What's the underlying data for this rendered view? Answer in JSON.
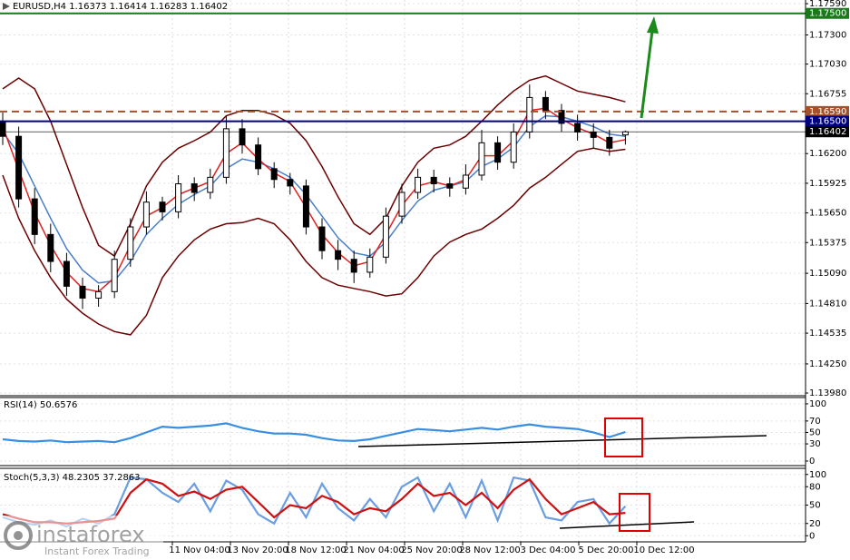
{
  "chart_data": [
    {
      "type": "candlestick",
      "title": "EURUSD,H4  1.16373 1.16414 1.16283 1.16402",
      "ylim": [
        1.13955,
        1.17624
      ],
      "yticks": [
        {
          "value": 1.1759,
          "label": "1.17590"
        },
        {
          "value": 1.173,
          "label": "1.17300"
        },
        {
          "value": 1.1703,
          "label": "1.17030"
        },
        {
          "value": 1.16755,
          "label": "1.16755"
        },
        {
          "value": 1.162,
          "label": "1.16200"
        },
        {
          "value": 1.15925,
          "label": "1.15925"
        },
        {
          "value": 1.1565,
          "label": "1.15650"
        },
        {
          "value": 1.15375,
          "label": "1.15375"
        },
        {
          "value": 1.1509,
          "label": "1.15090"
        },
        {
          "value": 1.1481,
          "label": "1.14810"
        },
        {
          "value": 1.14535,
          "label": "1.14535"
        },
        {
          "value": 1.1425,
          "label": "1.14250"
        },
        {
          "value": 1.1398,
          "label": "1.13980"
        }
      ],
      "levels": [
        {
          "value": 1.175,
          "label": "1.17500",
          "color": "#1a7a1a"
        },
        {
          "value": 1.1659,
          "label": "1.16590",
          "color": "#a0522d"
        },
        {
          "value": 1.165,
          "label": "1.16500",
          "color": "#000080"
        },
        {
          "value": 1.16402,
          "label": "1.16402",
          "color": "#000000"
        }
      ],
      "x_labels": [
        "11 Nov 04:00",
        "13 Nov 20:00",
        "18 Nov 12:00",
        "21 Nov 04:00",
        "25 Nov 20:00",
        "28 Nov 12:00",
        "3 Dec 04:00",
        "5 Dec 20:00",
        "10 Dec 12:00"
      ],
      "open": [
        1.165,
        1.1636,
        1.1578,
        1.1545,
        1.152,
        1.1497,
        1.1486,
        1.1492,
        1.1522,
        1.1552,
        1.1575,
        1.1566,
        1.1592,
        1.1584,
        1.1598,
        1.1643,
        1.1628,
        1.1606,
        1.1596,
        1.159,
        1.1552,
        1.153,
        1.1522,
        1.151,
        1.1524,
        1.1562,
        1.1584,
        1.1598,
        1.1592,
        1.1588,
        1.16,
        1.163,
        1.1612,
        1.164,
        1.1672,
        1.166,
        1.1648,
        1.164,
        1.1635,
        1.16373
      ],
      "high": [
        1.1658,
        1.1645,
        1.1588,
        1.1555,
        1.1528,
        1.1505,
        1.1498,
        1.153,
        1.156,
        1.1585,
        1.158,
        1.16,
        1.1598,
        1.1606,
        1.1655,
        1.1652,
        1.1635,
        1.1612,
        1.1602,
        1.1596,
        1.156,
        1.154,
        1.153,
        1.1532,
        1.157,
        1.1592,
        1.1606,
        1.1605,
        1.1598,
        1.161,
        1.1642,
        1.1636,
        1.1648,
        1.1684,
        1.1678,
        1.1666,
        1.1656,
        1.1648,
        1.1642,
        1.16414
      ],
      "low": [
        1.1628,
        1.157,
        1.1536,
        1.151,
        1.1488,
        1.1476,
        1.1478,
        1.1486,
        1.1515,
        1.1545,
        1.1558,
        1.156,
        1.1576,
        1.1578,
        1.1592,
        1.162,
        1.16,
        1.1588,
        1.1582,
        1.1545,
        1.1522,
        1.1512,
        1.15,
        1.1505,
        1.1518,
        1.1555,
        1.1578,
        1.1584,
        1.158,
        1.1582,
        1.1595,
        1.1605,
        1.1606,
        1.1634,
        1.1652,
        1.164,
        1.1632,
        1.1625,
        1.1618,
        1.16283
      ],
      "close": [
        1.1636,
        1.1578,
        1.1545,
        1.152,
        1.1497,
        1.1486,
        1.1492,
        1.1522,
        1.1552,
        1.1575,
        1.1566,
        1.1592,
        1.1584,
        1.1598,
        1.1643,
        1.1628,
        1.1606,
        1.1596,
        1.159,
        1.1552,
        1.153,
        1.1522,
        1.151,
        1.1524,
        1.1562,
        1.1584,
        1.1598,
        1.1592,
        1.1588,
        1.16,
        1.163,
        1.1612,
        1.164,
        1.1672,
        1.166,
        1.1648,
        1.164,
        1.1635,
        1.1625,
        1.16402
      ],
      "overlays": [
        {
          "color": "#6b0000",
          "values": [
            1.168,
            1.169,
            1.168,
            1.165,
            1.161,
            1.157,
            1.1535,
            1.1525,
            1.1555,
            1.159,
            1.1612,
            1.1625,
            1.1632,
            1.164,
            1.1655,
            1.166,
            1.166,
            1.1656,
            1.1648,
            1.1632,
            1.1608,
            1.158,
            1.1555,
            1.1545,
            1.156,
            1.159,
            1.1612,
            1.1625,
            1.1628,
            1.1636,
            1.165,
            1.1665,
            1.1678,
            1.1688,
            1.1692,
            1.1685,
            1.1678,
            1.1675,
            1.1672,
            1.1668
          ]
        },
        {
          "color": "#6b0000",
          "values": [
            1.16,
            1.156,
            1.153,
            1.1505,
            1.1485,
            1.1472,
            1.1462,
            1.1455,
            1.1452,
            1.147,
            1.1505,
            1.1525,
            1.154,
            1.155,
            1.1555,
            1.1556,
            1.156,
            1.1555,
            1.154,
            1.152,
            1.1505,
            1.1498,
            1.1495,
            1.1492,
            1.1488,
            1.149,
            1.1505,
            1.1525,
            1.1538,
            1.1545,
            1.155,
            1.156,
            1.1572,
            1.1588,
            1.1598,
            1.161,
            1.1622,
            1.1625,
            1.1622,
            1.1624
          ]
        },
        {
          "color": "#4a7ec8",
          "values": [
            1.164,
            1.162,
            1.159,
            1.156,
            1.1532,
            1.1512,
            1.15,
            1.1502,
            1.152,
            1.1545,
            1.156,
            1.1573,
            1.1582,
            1.159,
            1.1606,
            1.1615,
            1.1612,
            1.1606,
            1.1598,
            1.1582,
            1.1562,
            1.1542,
            1.1528,
            1.1525,
            1.1538,
            1.1558,
            1.1576,
            1.1586,
            1.159,
            1.1594,
            1.1608,
            1.1615,
            1.1626,
            1.1645,
            1.1655,
            1.1654,
            1.165,
            1.1645,
            1.1638,
            1.1636
          ]
        },
        {
          "color": "#e02020",
          "values": [
            1.1645,
            1.1605,
            1.1565,
            1.1535,
            1.151,
            1.1495,
            1.1492,
            1.1505,
            1.1535,
            1.1562,
            1.157,
            1.1582,
            1.1588,
            1.1594,
            1.162,
            1.163,
            1.1615,
            1.1602,
            1.1594,
            1.157,
            1.1545,
            1.1528,
            1.1516,
            1.152,
            1.1545,
            1.1572,
            1.159,
            1.1594,
            1.159,
            1.1596,
            1.1618,
            1.1618,
            1.1632,
            1.166,
            1.1662,
            1.1652,
            1.1644,
            1.1638,
            1.163,
            1.1633
          ]
        }
      ]
    },
    {
      "type": "line",
      "title": "RSI(14) 50.6576",
      "ylim": [
        -8,
        111
      ],
      "yticks": [
        100,
        70,
        50,
        30,
        0
      ],
      "series": [
        {
          "color": "#3a8ee0",
          "values": [
            38,
            35,
            34,
            36,
            33,
            34,
            35,
            33,
            40,
            50,
            60,
            58,
            60,
            62,
            66,
            58,
            52,
            48,
            48,
            46,
            40,
            36,
            35,
            38,
            44,
            50,
            56,
            54,
            52,
            55,
            58,
            55,
            60,
            64,
            60,
            58,
            56,
            50,
            42,
            50.6576
          ]
        }
      ]
    },
    {
      "type": "line",
      "title": "Stoch(5,3,3) 48.2305 37.2863",
      "ylim": [
        -10,
        110
      ],
      "yticks": [
        100,
        80,
        50,
        20,
        0
      ],
      "series": [
        {
          "color": "#6a9ee0",
          "values": [
            30,
            22,
            18,
            25,
            15,
            28,
            20,
            35,
            95,
            92,
            70,
            55,
            85,
            40,
            90,
            75,
            35,
            20,
            70,
            30,
            85,
            45,
            25,
            60,
            30,
            80,
            95,
            40,
            85,
            30,
            90,
            25,
            95,
            90,
            30,
            25,
            55,
            60,
            20,
            48.2305
          ]
        },
        {
          "color": "#d01010",
          "values": [
            35,
            28,
            22,
            22,
            20,
            22,
            24,
            28,
            70,
            92,
            85,
            65,
            72,
            60,
            75,
            80,
            55,
            30,
            50,
            45,
            65,
            55,
            35,
            45,
            40,
            60,
            85,
            65,
            70,
            50,
            70,
            45,
            75,
            92,
            60,
            35,
            45,
            55,
            35,
            37.2863
          ]
        }
      ]
    }
  ],
  "logo": {
    "name": "instaforex",
    "tagline": "Instant Forex Trading"
  }
}
